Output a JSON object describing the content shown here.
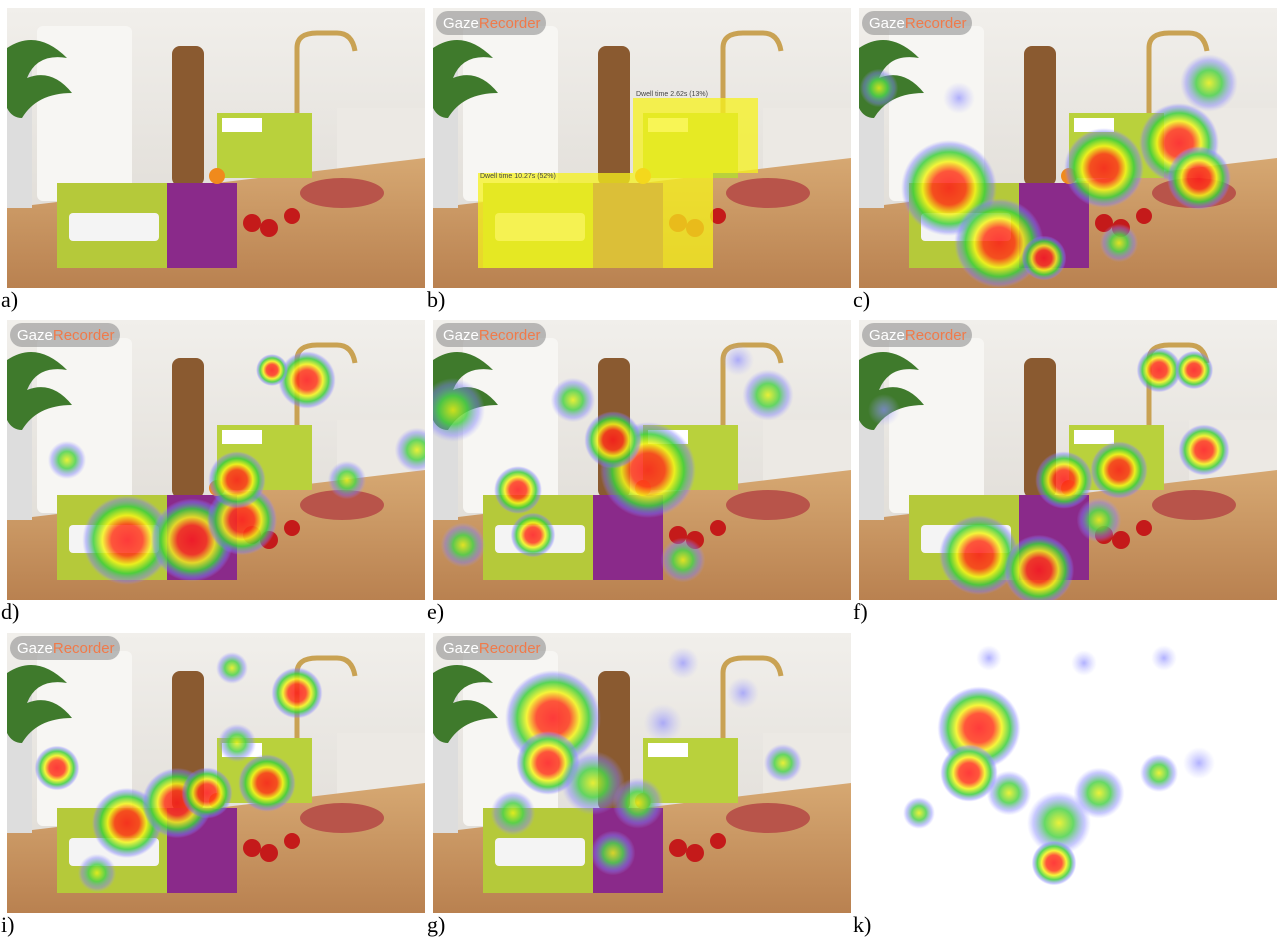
{
  "panels": [
    {
      "label": "a)"
    },
    {
      "label": "b)",
      "watermark": [
        "Gaze",
        "Recorder"
      ],
      "annotations": [
        "Dwell time 2.62s (13%)",
        "Dwell time 10.27s (52%)"
      ]
    },
    {
      "label": "c)",
      "watermark": [
        "Gaze",
        "Recorder"
      ]
    },
    {
      "label": "d)",
      "watermark": [
        "Gaze",
        "Recorder"
      ]
    },
    {
      "label": "e)",
      "watermark": [
        "Gaze",
        "Recorder"
      ]
    },
    {
      "label": "f)",
      "watermark": [
        "Gaze",
        "Recorder"
      ]
    },
    {
      "label": "i)",
      "watermark": [
        "Gaze",
        "Recorder"
      ]
    },
    {
      "label": "g)",
      "watermark": [
        "Gaze",
        "Recorder"
      ]
    },
    {
      "label": "k)"
    }
  ]
}
